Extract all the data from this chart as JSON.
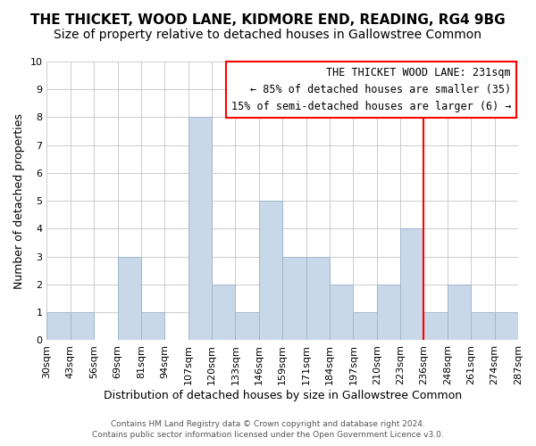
{
  "title": "THE THICKET, WOOD LANE, KIDMORE END, READING, RG4 9BG",
  "subtitle": "Size of property relative to detached houses in Gallowstree Common",
  "xlabel": "Distribution of detached houses by size in Gallowstree Common",
  "ylabel": "Number of detached properties",
  "footer_line1": "Contains HM Land Registry data © Crown copyright and database right 2024.",
  "footer_line2": "Contains public sector information licensed under the Open Government Licence v3.0.",
  "bin_labels": [
    "30sqm",
    "43sqm",
    "56sqm",
    "69sqm",
    "81sqm",
    "94sqm",
    "107sqm",
    "120sqm",
    "133sqm",
    "146sqm",
    "159sqm",
    "171sqm",
    "184sqm",
    "197sqm",
    "210sqm",
    "223sqm",
    "236sqm",
    "248sqm",
    "261sqm",
    "274sqm",
    "287sqm"
  ],
  "bar_heights": [
    1,
    1,
    0,
    3,
    1,
    0,
    8,
    2,
    1,
    5,
    3,
    3,
    2,
    1,
    2,
    4,
    1,
    2,
    1,
    1
  ],
  "bar_color": "#c8d8e8",
  "bar_edge_color": "#a0b8cc",
  "ylim": [
    0,
    10
  ],
  "yticks": [
    0,
    1,
    2,
    3,
    4,
    5,
    6,
    7,
    8,
    9,
    10
  ],
  "reference_line_color": "red",
  "annotation_box_text": "THE THICKET WOOD LANE: 231sqm\n← 85% of detached houses are smaller (35)\n15% of semi-detached houses are larger (6) →",
  "grid_color": "#cccccc",
  "background_color": "#ffffff",
  "title_fontsize": 11,
  "subtitle_fontsize": 10,
  "axis_label_fontsize": 9,
  "tick_label_fontsize": 8,
  "annotation_fontsize": 8.5
}
